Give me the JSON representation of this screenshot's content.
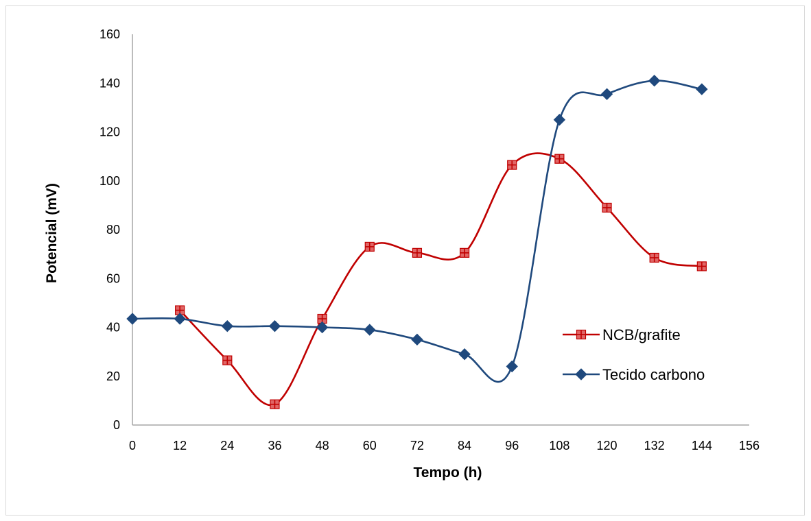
{
  "chart_data": {
    "type": "line",
    "smooth": true,
    "xlabel": "Tempo (h)",
    "ylabel": "Potencial (mV)",
    "xlim": [
      0,
      156
    ],
    "ylim": [
      0,
      160
    ],
    "xticks": [
      "0",
      "12",
      "24",
      "36",
      "48",
      "60",
      "72",
      "84",
      "96",
      "108",
      "120",
      "132",
      "144",
      "156"
    ],
    "yticks": [
      "0",
      "20",
      "40",
      "60",
      "80",
      "100",
      "120",
      "140",
      "160"
    ],
    "grid": false,
    "legend_position": "right",
    "series": [
      {
        "name": "NCB/grafite",
        "color": "#c00000",
        "marker": "square-plus",
        "marker_fill": "#e06666",
        "x": [
          12,
          24,
          36,
          48,
          60,
          72,
          84,
          96,
          108,
          120,
          132,
          144
        ],
        "y": [
          47,
          26.5,
          8.5,
          43.5,
          73,
          70.5,
          70.5,
          106.5,
          109,
          89,
          68.5,
          65
        ]
      },
      {
        "name": "Tecido carbono",
        "color": "#1f497d",
        "marker": "diamond",
        "marker_fill": "#1f497d",
        "x": [
          0,
          12,
          24,
          36,
          48,
          60,
          72,
          84,
          96,
          108,
          120,
          132,
          144
        ],
        "y": [
          43.5,
          43.5,
          40.5,
          40.5,
          40,
          39,
          35,
          29,
          24,
          125,
          135.5,
          141,
          137.5
        ]
      }
    ]
  }
}
